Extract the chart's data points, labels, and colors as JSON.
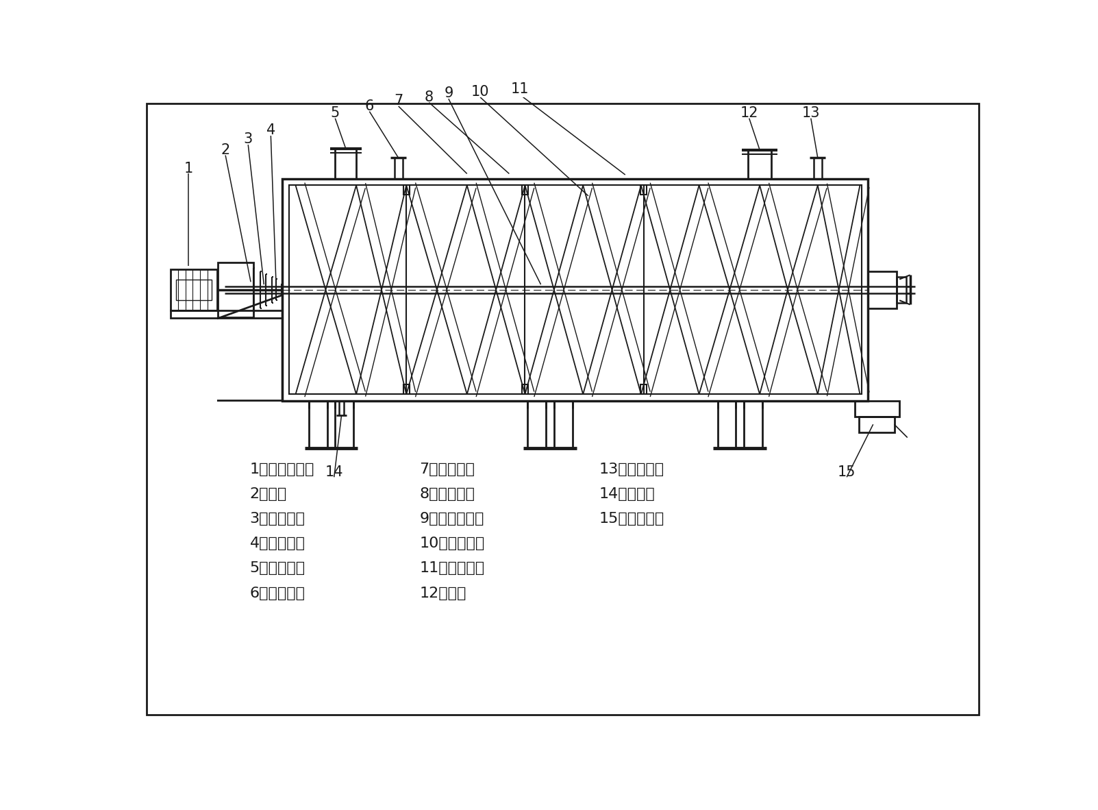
{
  "bg_color": "#ffffff",
  "line_color": "#1a1a1a",
  "text_color": "#1a1a1a",
  "legend_col1": [
    "1、電機減速機",
    "2、軸承",
    "3、旋轉接頭",
    "4、機械密封",
    "5、物料入口",
    "6、冷媒入口"
  ],
  "legend_col2": [
    "7、夾套殼體",
    "8、內筒殼體",
    "9、空心攆拌軸",
    "10、螺旋盤管",
    "11、螺旋攆帶",
    "12、人孔"
  ],
  "legend_col3": [
    "13、冷媒出口",
    "14、排污口",
    "15、物料出口"
  ]
}
